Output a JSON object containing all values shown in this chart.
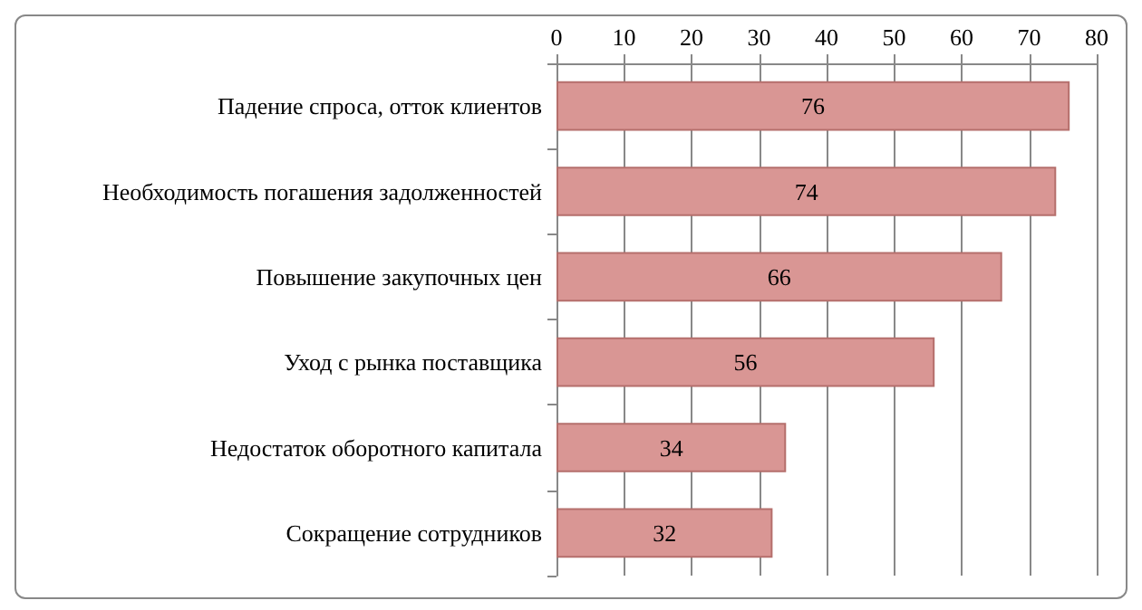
{
  "chart_data": {
    "type": "bar",
    "orientation": "horizontal",
    "categories": [
      "Падение спроса, отток клиентов",
      "Необходимость погашения задолженностей",
      "Повышение закупочных цен",
      "Уход с рынка поставщика",
      "Недостаток оборотного капитала",
      "Сокращение сотрудников"
    ],
    "values": [
      76,
      74,
      66,
      56,
      34,
      32
    ],
    "color": "#d99694",
    "xlim": [
      0,
      80
    ],
    "xticks": [
      0,
      10,
      20,
      30,
      40,
      50,
      60,
      70,
      80
    ],
    "grid": "x",
    "data_labels": true
  }
}
